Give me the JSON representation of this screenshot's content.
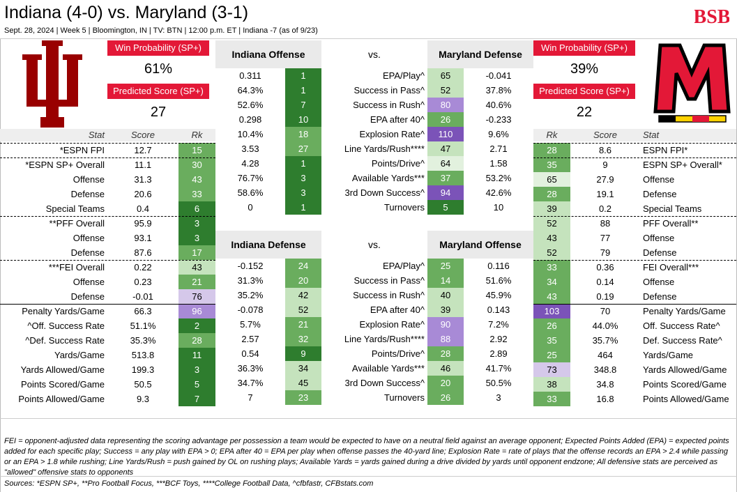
{
  "header": {
    "title": "Indiana (4-0) vs. Maryland (3-1)",
    "subtitle": "Sept. 28, 2024 | Week 5 | Bloomington, IN | TV: BTN | 12:00 p.m. ET | Indiana -7 (as of 9/23)",
    "logo_text": "BSB"
  },
  "colors": {
    "red": "#e31837",
    "dark_green": "#2e7d2e",
    "med_green": "#6aad5e",
    "light_green": "#c5e3bd",
    "pale_green": "#e2f1de",
    "purple_dark": "#7b53b8",
    "purple_med": "#a88ad6",
    "purple_light": "#d5c8ea"
  },
  "left_team": {
    "logo": "indiana-trident-logo",
    "win_prob_label": "Win Probability (SP+)",
    "win_prob": "61%",
    "pred_label": "Predicted Score (SP+)",
    "pred_score": "27"
  },
  "right_team": {
    "logo": "maryland-m-logo",
    "win_prob_label": "Win Probability (SP+)",
    "win_prob": "39%",
    "pred_label": "Predicted Score (SP+)",
    "pred_score": "22"
  },
  "stat_headers": {
    "left": {
      "stat": "Stat",
      "score": "Score",
      "rk": "Rk"
    },
    "right": {
      "rk": "Rk",
      "score": "Score",
      "stat": "Stat"
    }
  },
  "left_stats": [
    {
      "stat": "*ESPN FPI",
      "score": "12.7",
      "rk": "15",
      "c": "med"
    },
    {
      "stat": "*ESPN SP+ Overall",
      "score": "11.1",
      "rk": "30",
      "c": "med"
    },
    {
      "stat": "Offense",
      "score": "31.3",
      "rk": "43",
      "c": "med"
    },
    {
      "stat": "Defense",
      "score": "20.6",
      "rk": "33",
      "c": "med"
    },
    {
      "stat": "Special Teams",
      "score": "0.4",
      "rk": "6",
      "c": "dark"
    },
    {
      "stat": "**PFF Overall",
      "score": "95.9",
      "rk": "3",
      "c": "dark"
    },
    {
      "stat": "Offense",
      "score": "93.1",
      "rk": "3",
      "c": "dark"
    },
    {
      "stat": "Defense",
      "score": "87.6",
      "rk": "17",
      "c": "med"
    },
    {
      "stat": "***FEI Overall",
      "score": "0.22",
      "rk": "43",
      "c": "light"
    },
    {
      "stat": "Offense",
      "score": "0.23",
      "rk": "21",
      "c": "med"
    },
    {
      "stat": "Defense",
      "score": "-0.01",
      "rk": "76",
      "c": "plight"
    },
    {
      "stat": "Penalty Yards/Game",
      "score": "66.3",
      "rk": "96",
      "c": "pmed"
    },
    {
      "stat": "^Off. Success Rate",
      "score": "51.1%",
      "rk": "2",
      "c": "dark"
    },
    {
      "stat": "^Def. Success Rate",
      "score": "35.3%",
      "rk": "28",
      "c": "med"
    },
    {
      "stat": "Yards/Game",
      "score": "513.8",
      "rk": "11",
      "c": "dark"
    },
    {
      "stat": "Yards Allowed/Game",
      "score": "199.3",
      "rk": "3",
      "c": "dark"
    },
    {
      "stat": "Points Scored/Game",
      "score": "50.5",
      "rk": "5",
      "c": "dark"
    },
    {
      "stat": "Points Allowed/Game",
      "score": "9.3",
      "rk": "7",
      "c": "dark"
    }
  ],
  "right_stats": [
    {
      "rk": "28",
      "score": "8.6",
      "stat": "ESPN FPI*",
      "c": "med"
    },
    {
      "rk": "35",
      "score": "9",
      "stat": "ESPN SP+ Overall*",
      "c": "med"
    },
    {
      "rk": "65",
      "score": "27.9",
      "stat": "Offense",
      "c": "pale"
    },
    {
      "rk": "28",
      "score": "19.1",
      "stat": "Defense",
      "c": "med"
    },
    {
      "rk": "39",
      "score": "0.2",
      "stat": "Special Teams",
      "c": "light"
    },
    {
      "rk": "52",
      "score": "88",
      "stat": "PFF Overall**",
      "c": "light"
    },
    {
      "rk": "43",
      "score": "77",
      "stat": "Offense",
      "c": "light"
    },
    {
      "rk": "52",
      "score": "79",
      "stat": "Defense",
      "c": "light"
    },
    {
      "rk": "33",
      "score": "0.36",
      "stat": "FEI Overall***",
      "c": "med"
    },
    {
      "rk": "34",
      "score": "0.14",
      "stat": "Offense",
      "c": "med"
    },
    {
      "rk": "43",
      "score": "0.19",
      "stat": "Defense",
      "c": "med"
    },
    {
      "rk": "103",
      "score": "70",
      "stat": "Penalty Yards/Game",
      "c": "pdark"
    },
    {
      "rk": "26",
      "score": "44.0%",
      "stat": "Off. Success Rate^",
      "c": "med"
    },
    {
      "rk": "35",
      "score": "35.7%",
      "stat": "Def. Success Rate^",
      "c": "med"
    },
    {
      "rk": "25",
      "score": "464",
      "stat": "Yards/Game",
      "c": "med"
    },
    {
      "rk": "73",
      "score": "348.8",
      "stat": "Yards Allowed/Game",
      "c": "plight"
    },
    {
      "rk": "38",
      "score": "34.8",
      "stat": "Points Scored/Game",
      "c": "light"
    },
    {
      "rk": "33",
      "score": "16.8",
      "stat": "Points Allowed/Game",
      "c": "med"
    }
  ],
  "matchup1": {
    "left_title": "Indiana Offense",
    "vs": "vs.",
    "right_title": "Maryland Defense",
    "rows": [
      {
        "lv": "0.311",
        "lr": "1",
        "lc": "dark",
        "stat": "EPA/Play^",
        "rr": "65",
        "rc": "light",
        "rv": "-0.041"
      },
      {
        "lv": "64.3%",
        "lr": "1",
        "lc": "dark",
        "stat": "Success in Pass^",
        "rr": "52",
        "rc": "light",
        "rv": "37.8%"
      },
      {
        "lv": "52.6%",
        "lr": "7",
        "lc": "dark",
        "stat": "Success in Rush^",
        "rr": "80",
        "rc": "pmed",
        "rv": "40.6%"
      },
      {
        "lv": "0.298",
        "lr": "10",
        "lc": "dark",
        "stat": "EPA after 40^",
        "rr": "26",
        "rc": "med",
        "rv": "-0.233"
      },
      {
        "lv": "10.4%",
        "lr": "18",
        "lc": "med",
        "stat": "Explosion Rate^",
        "rr": "110",
        "rc": "pdark",
        "rv": "9.6%"
      },
      {
        "lv": "3.53",
        "lr": "27",
        "lc": "med",
        "stat": "Line Yards/Rush****",
        "rr": "47",
        "rc": "light",
        "rv": "2.71"
      },
      {
        "lv": "4.28",
        "lr": "1",
        "lc": "dark",
        "stat": "Points/Drive^",
        "rr": "64",
        "rc": "pale",
        "rv": "1.58"
      },
      {
        "lv": "76.7%",
        "lr": "3",
        "lc": "dark",
        "stat": "Available Yards***",
        "rr": "37",
        "rc": "med",
        "rv": "53.2%"
      },
      {
        "lv": "58.6%",
        "lr": "3",
        "lc": "dark",
        "stat": "3rd Down Success^",
        "rr": "94",
        "rc": "pdark",
        "rv": "42.6%"
      },
      {
        "lv": "0",
        "lr": "1",
        "lc": "dark",
        "stat": "Turnovers",
        "rr": "5",
        "rc": "dark",
        "rv": "10"
      }
    ]
  },
  "matchup2": {
    "left_title": "Indiana Defense",
    "vs": "vs.",
    "right_title": "Maryland Offense",
    "rows": [
      {
        "lv": "-0.152",
        "lr": "24",
        "lc": "med",
        "stat": "EPA/Play^",
        "rr": "25",
        "rc": "med",
        "rv": "0.116"
      },
      {
        "lv": "31.3%",
        "lr": "20",
        "lc": "med",
        "stat": "Success in Pass^",
        "rr": "14",
        "rc": "med",
        "rv": "51.6%"
      },
      {
        "lv": "35.2%",
        "lr": "42",
        "lc": "light",
        "stat": "Success in Rush^",
        "rr": "40",
        "rc": "light",
        "rv": "45.9%"
      },
      {
        "lv": "-0.078",
        "lr": "52",
        "lc": "light",
        "stat": "EPA after 40^",
        "rr": "39",
        "rc": "light",
        "rv": "0.143"
      },
      {
        "lv": "5.7%",
        "lr": "21",
        "lc": "med",
        "stat": "Explosion Rate^",
        "rr": "90",
        "rc": "pmed",
        "rv": "7.2%"
      },
      {
        "lv": "2.57",
        "lr": "32",
        "lc": "med",
        "stat": "Line Yards/Rush****",
        "rr": "88",
        "rc": "pmed",
        "rv": "2.92"
      },
      {
        "lv": "0.54",
        "lr": "9",
        "lc": "dark",
        "stat": "Points/Drive^",
        "rr": "28",
        "rc": "med",
        "rv": "2.89"
      },
      {
        "lv": "36.3%",
        "lr": "34",
        "lc": "light",
        "stat": "Available Yards***",
        "rr": "46",
        "rc": "light",
        "rv": "41.7%"
      },
      {
        "lv": "34.7%",
        "lr": "45",
        "lc": "light",
        "stat": "3rd Down Success^",
        "rr": "20",
        "rc": "med",
        "rv": "50.5%"
      },
      {
        "lv": "7",
        "lr": "23",
        "lc": "med",
        "stat": "Turnovers",
        "rr": "26",
        "rc": "med",
        "rv": "3"
      }
    ]
  },
  "footer": {
    "notes": "FEI = opponent-adjusted data representing the scoring advantage per possession a team would be expected to have on a neutral field against an average opponent; Expected Points Added (EPA) = expected points added for each specific play; Success = any play with EPA > 0; EPA after 40 = EPA per play when offense passes the 40-yard line; Explosion Rate = rate of plays that the offense records an EPA > 2.4 while passing or an EPA > 1.8 while rushing; Line Yards/Rush = push gained by OL on rushing plays; Available Yards = yards gained during a drive divided by yards until opponent endzone; All defensive stats are perceived as \"allowed\" offensive stats to opponents",
    "sources": "Sources:  *ESPN SP+, **Pro Football Focus, ***BCF Toys, ****College Football Data, ^cfbfastr, CFBstats.com"
  }
}
